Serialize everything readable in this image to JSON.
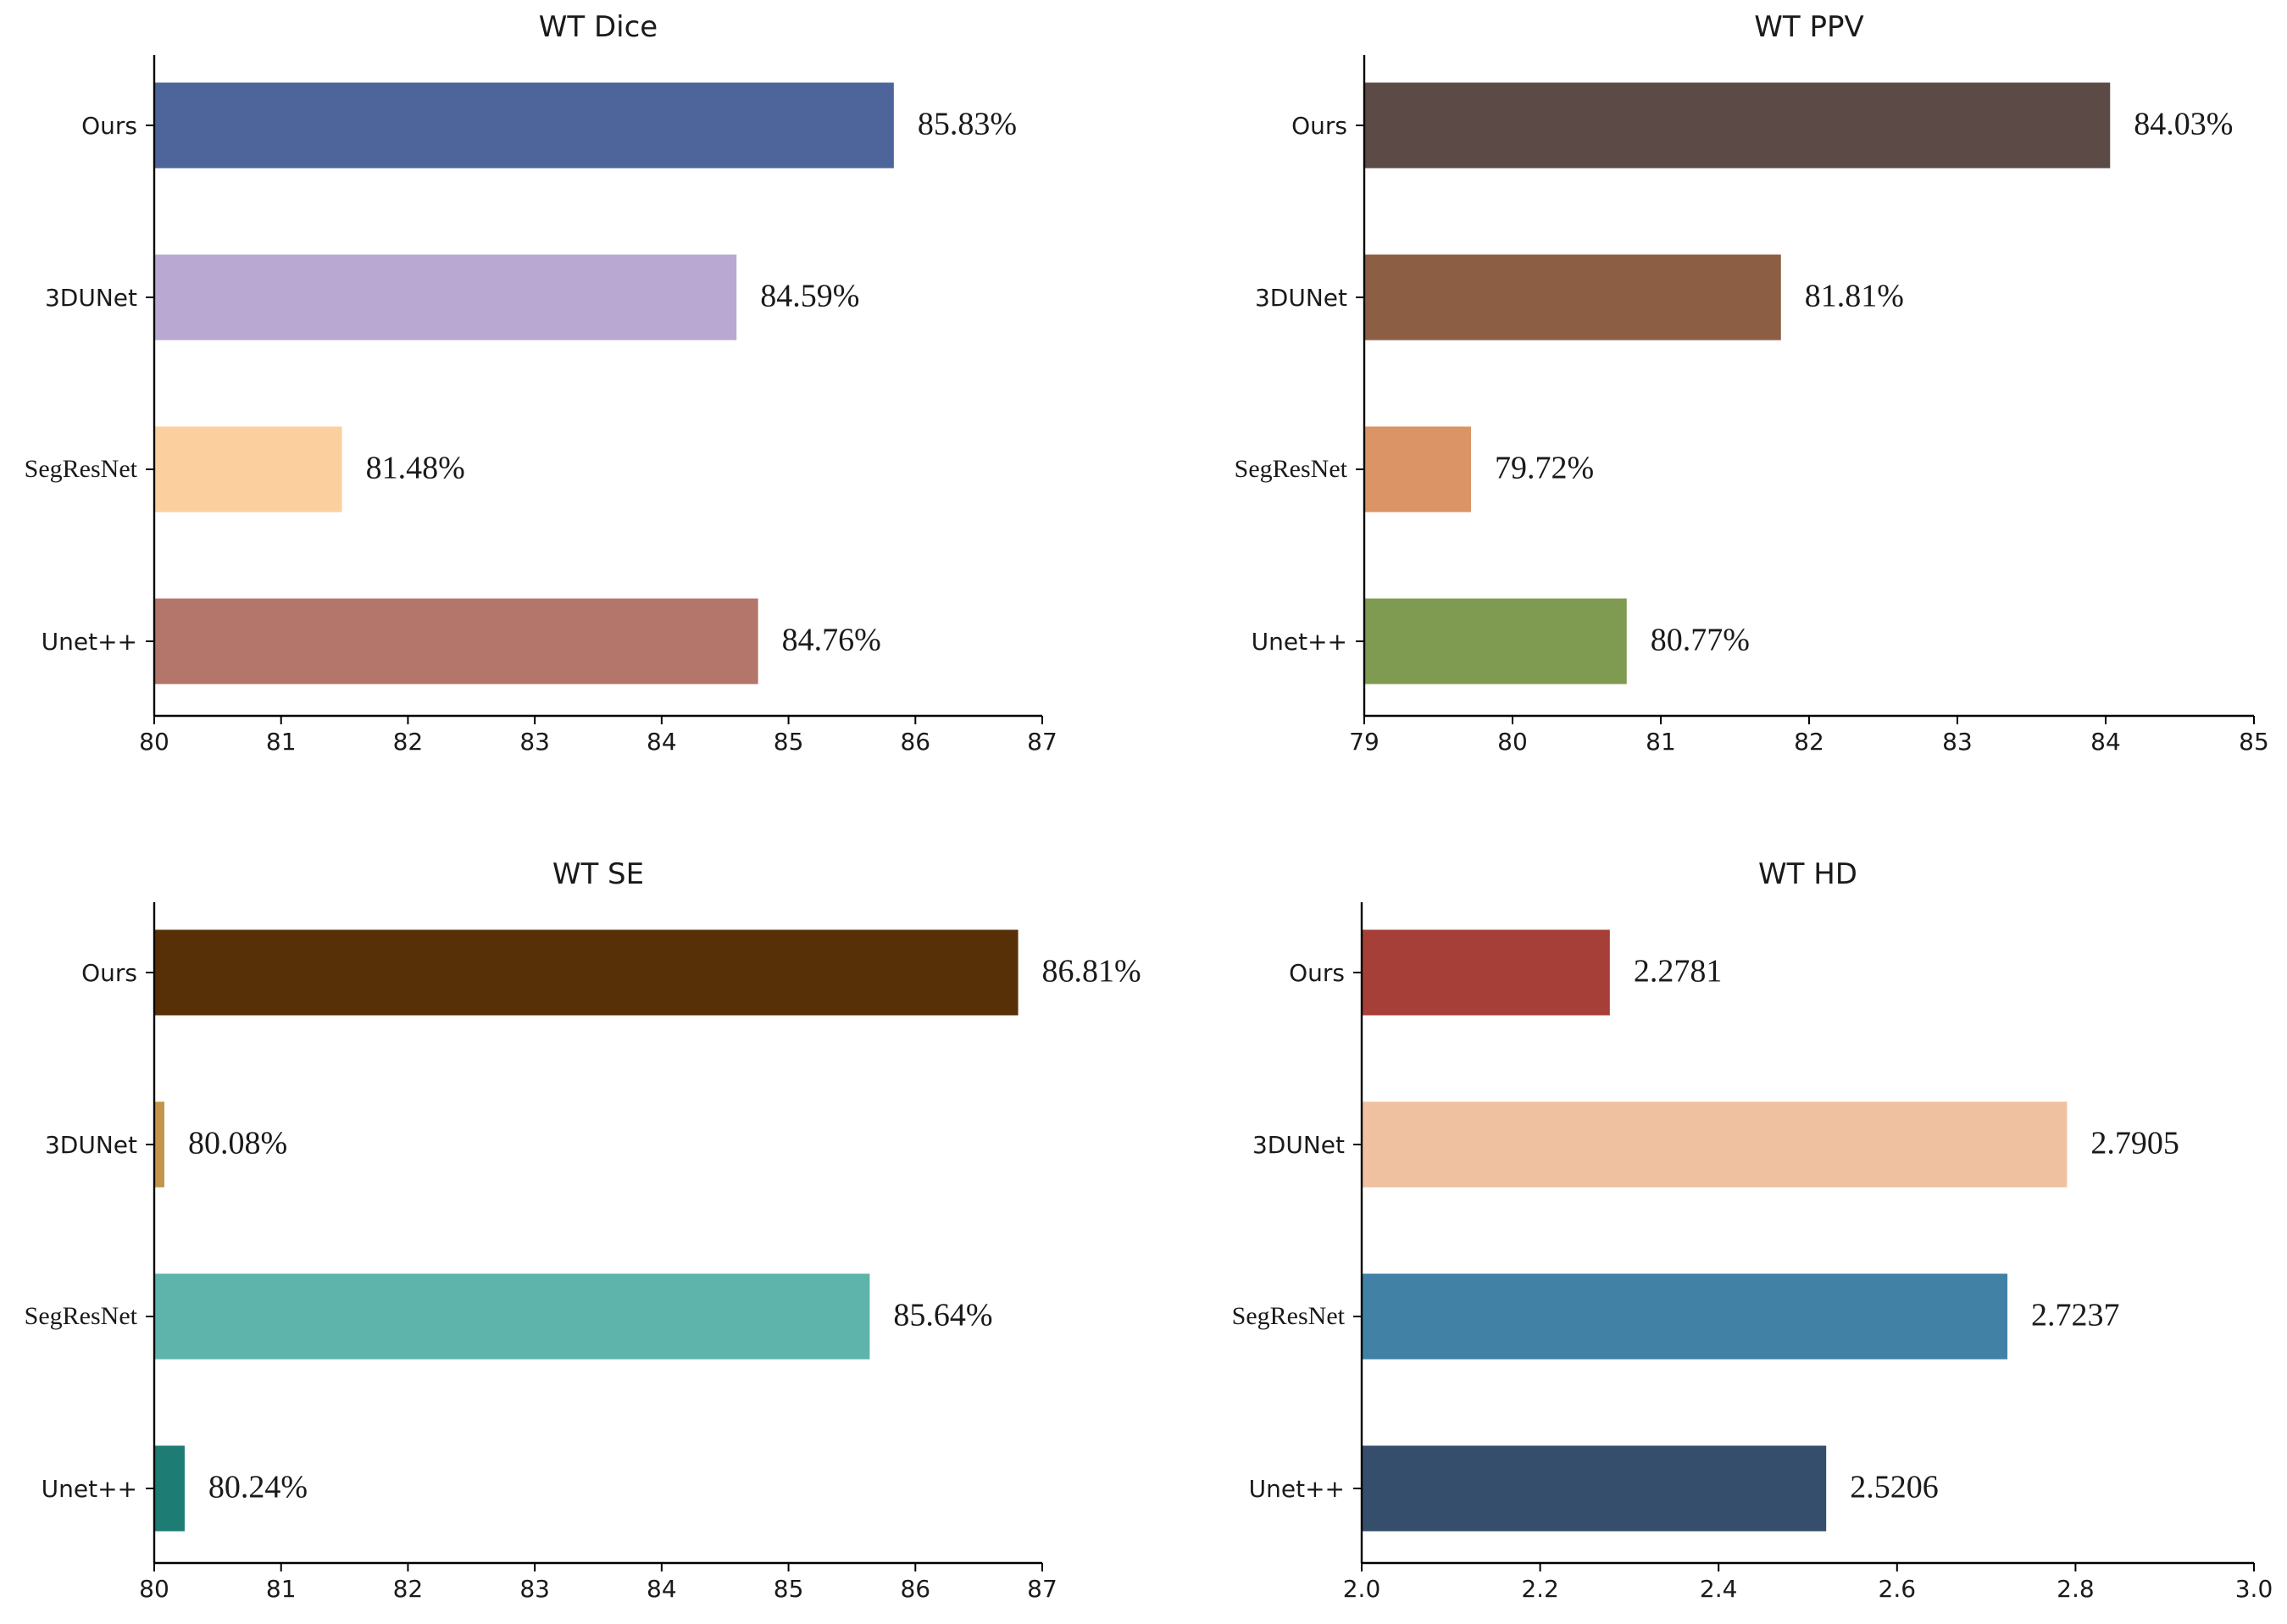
{
  "chart_data": [
    {
      "type": "bar",
      "orientation": "horizontal",
      "title": "WT  Dice",
      "categories": [
        "Ours",
        "3DUNet",
        "SegResNet",
        "Unet++"
      ],
      "values": [
        85.83,
        84.59,
        81.48,
        84.76
      ],
      "value_labels": [
        "85.83%",
        "84.59%",
        "81.48%",
        "84.76%"
      ],
      "colors": [
        "#4e659b",
        "#b9a8d1",
        "#fccf9f",
        "#b4756a"
      ],
      "xlim": [
        80,
        87
      ],
      "xticks": [
        80,
        81,
        82,
        83,
        84,
        85,
        86,
        87
      ],
      "xtick_labels": [
        "80",
        "81",
        "82",
        "83",
        "84",
        "85",
        "86",
        "87"
      ]
    },
    {
      "type": "bar",
      "orientation": "horizontal",
      "title": "WT  PPV",
      "categories": [
        "Ours",
        "3DUNet",
        "SegResNet",
        "Unet++"
      ],
      "values": [
        84.03,
        81.81,
        79.72,
        80.77
      ],
      "value_labels": [
        "84.03%",
        "81.81%",
        "79.72%",
        "80.77%"
      ],
      "colors": [
        "#5c4a47",
        "#8c5e43",
        "#da9466",
        "#7f9a51"
      ],
      "xlim": [
        79,
        85
      ],
      "xticks": [
        79,
        80,
        81,
        82,
        83,
        84,
        85
      ],
      "xtick_labels": [
        "79",
        "80",
        "81",
        "82",
        "83",
        "84",
        "85"
      ]
    },
    {
      "type": "bar",
      "orientation": "horizontal",
      "title": "WT  SE",
      "categories": [
        "Ours",
        "3DUNet",
        "SegResNet",
        "Unet++"
      ],
      "values": [
        86.81,
        80.08,
        85.64,
        80.24
      ],
      "value_labels": [
        "86.81%",
        "80.08%",
        "85.64%",
        "80.24%"
      ],
      "colors": [
        "#583007",
        "#c5944b",
        "#5eb4aa",
        "#1d7c74"
      ],
      "xlim": [
        80,
        87
      ],
      "xticks": [
        80,
        81,
        82,
        83,
        84,
        85,
        86,
        87
      ],
      "xtick_labels": [
        "80",
        "81",
        "82",
        "83",
        "84",
        "85",
        "86",
        "87"
      ]
    },
    {
      "type": "bar",
      "orientation": "horizontal",
      "title": "WT  HD",
      "categories": [
        "Ours",
        "3DUNet",
        "SegResNet",
        "Unet++"
      ],
      "values": [
        2.2781,
        2.7905,
        2.7237,
        2.5206
      ],
      "value_labels": [
        "2.2781",
        "2.7905",
        "2.7237",
        "2.5206"
      ],
      "colors": [
        "#a63f37",
        "#efc1a0",
        "#4181a6",
        "#344e6b"
      ],
      "xlim": [
        2.0,
        3.0
      ],
      "xticks": [
        2.0,
        2.2,
        2.4,
        2.6,
        2.8,
        3.0
      ],
      "xtick_labels": [
        "2.0",
        "2.2",
        "2.4",
        "2.6",
        "2.8",
        "3.0"
      ]
    }
  ]
}
